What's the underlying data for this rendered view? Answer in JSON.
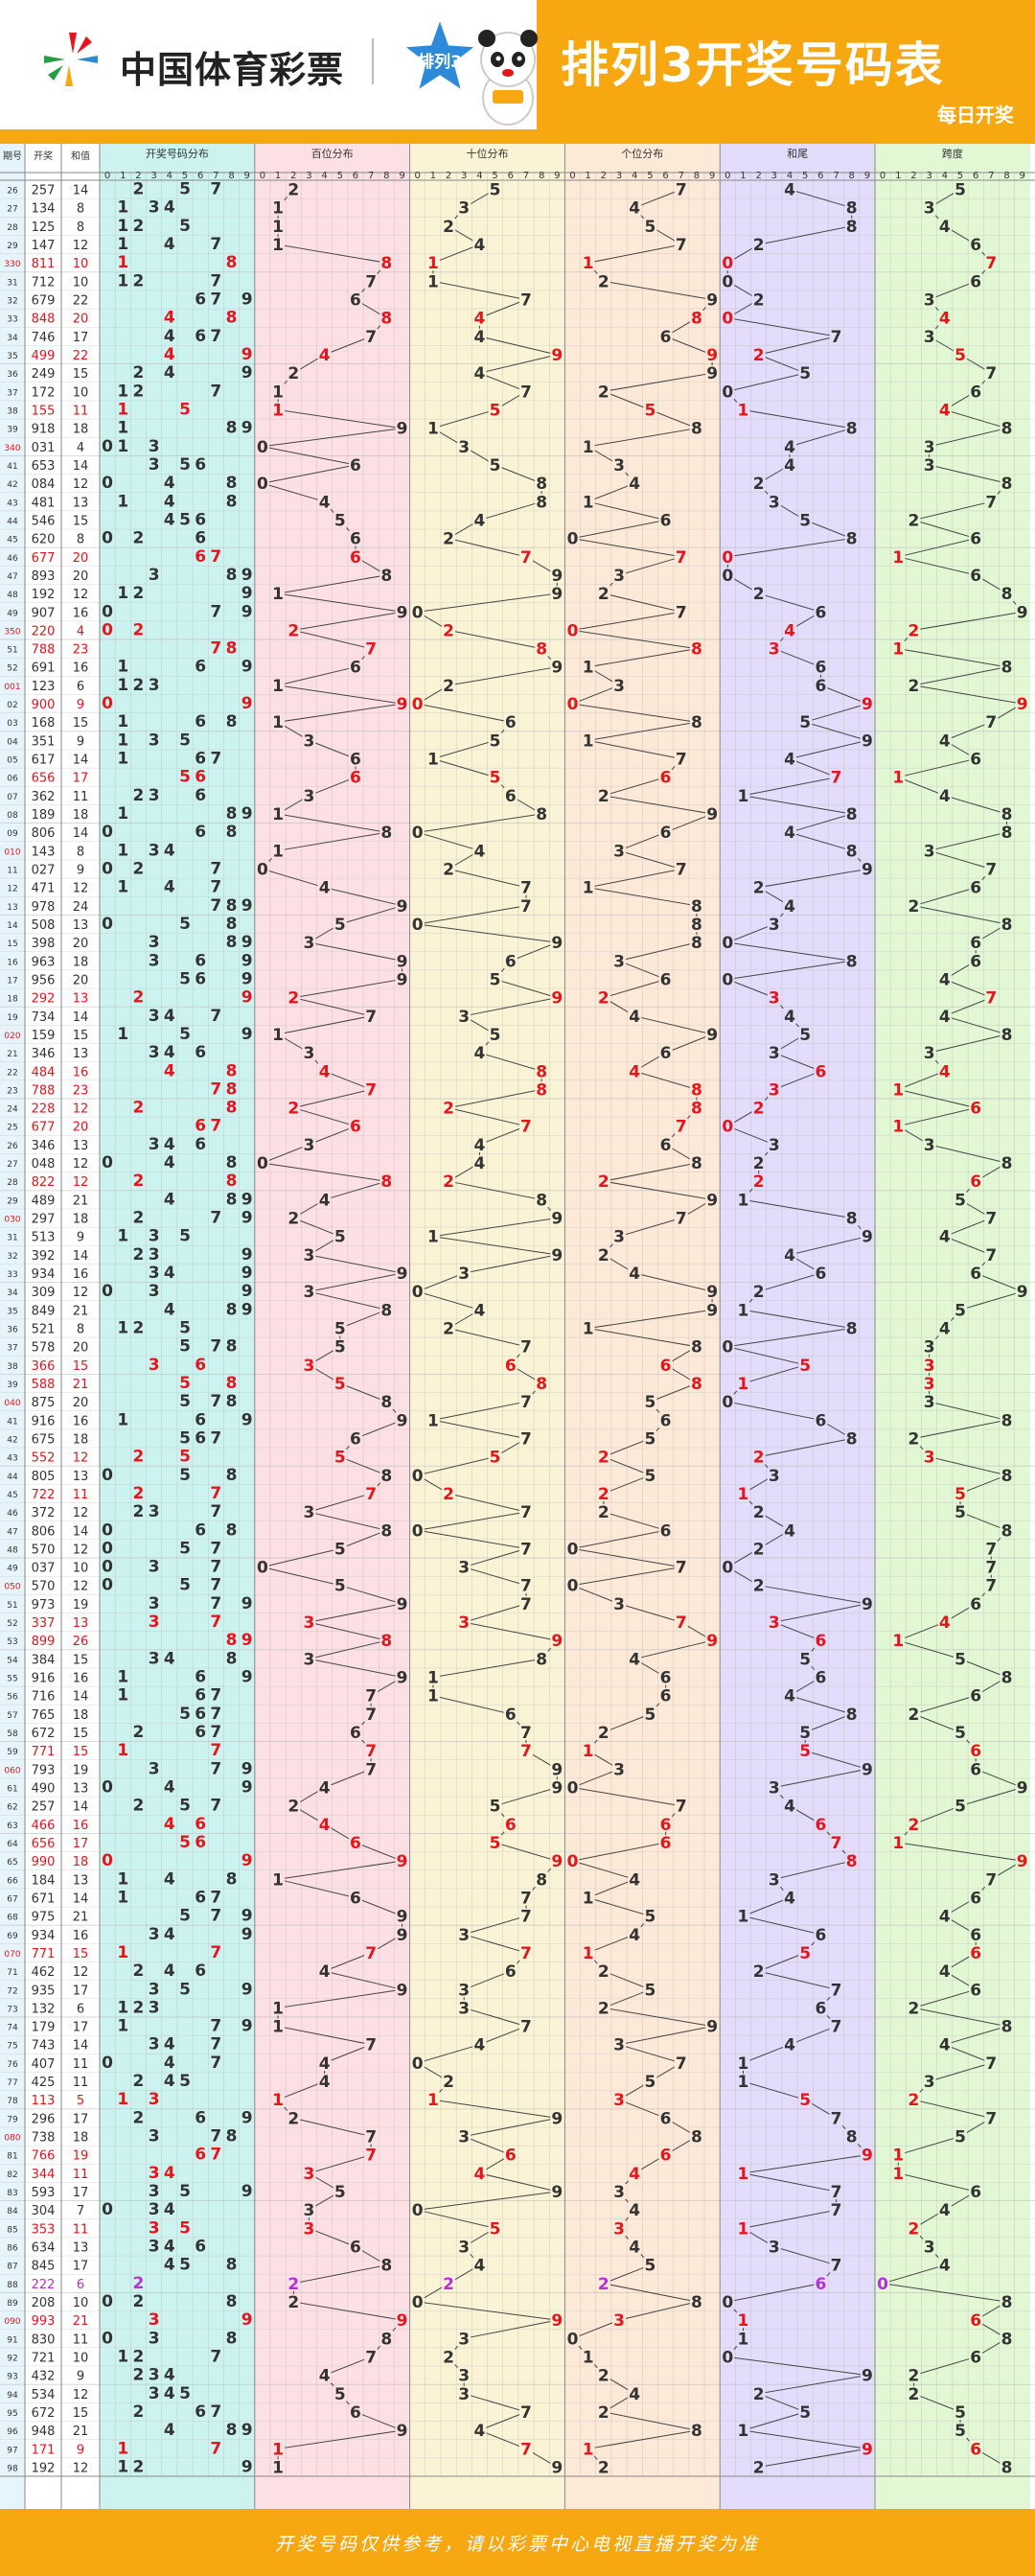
{
  "header": {
    "brand_name": "中国体育彩票",
    "badge_text": "排列3",
    "title": "排列3开奖号码表",
    "subtitle": "每日开奖"
  },
  "footer": {
    "disclaimer": "开奖号码仅供参考，请以彩票中心电视直播开奖为准"
  },
  "colors": {
    "brand_orange": "#f7a810",
    "hit_red": "#e8141c",
    "hit_purple": "#b530d8",
    "normal_text": "#333333",
    "grid_line": "#b8b8b8"
  },
  "chart_data": {
    "type": "table",
    "column_headers": {
      "issue": "期号",
      "number": "开奖",
      "sum": "和值",
      "number_distribution": "开奖号码分布",
      "hundreds": "百位分布",
      "tens": "十位分布",
      "units": "个位分布",
      "sum_tail": "和尾",
      "span": "跨度"
    },
    "digit_labels": [
      "0",
      "1",
      "2",
      "3",
      "4",
      "5",
      "6",
      "7",
      "8",
      "9"
    ],
    "issues": [
      "26",
      "27",
      "28",
      "29",
      "330",
      "31",
      "32",
      "33",
      "34",
      "35",
      "36",
      "37",
      "38",
      "39",
      "340",
      "41",
      "42",
      "43",
      "44",
      "45",
      "46",
      "47",
      "48",
      "49",
      "350",
      "51",
      "52",
      "001",
      "02",
      "03",
      "04",
      "05",
      "06",
      "07",
      "08",
      "09",
      "010",
      "11",
      "12",
      "13",
      "14",
      "15",
      "16",
      "17",
      "18",
      "19",
      "020",
      "21",
      "22",
      "23",
      "24",
      "25",
      "26",
      "27",
      "28",
      "29",
      "030",
      "31",
      "32",
      "33",
      "34",
      "35",
      "36",
      "37",
      "38",
      "39",
      "040",
      "41",
      "42",
      "43",
      "44",
      "45",
      "46",
      "47",
      "48",
      "49",
      "050",
      "51",
      "52",
      "53",
      "54",
      "55",
      "56",
      "57",
      "58",
      "59",
      "060",
      "61",
      "62",
      "63",
      "64",
      "65",
      "66",
      "67",
      "68",
      "69",
      "070",
      "71",
      "72",
      "73",
      "74",
      "75",
      "76",
      "77",
      "78",
      "79",
      "080",
      "81",
      "82",
      "83",
      "84",
      "85",
      "86",
      "87",
      "88",
      "89",
      "090",
      "91",
      "92",
      "93",
      "94",
      "95",
      "96",
      "97",
      "98"
    ],
    "numbers": [
      "257",
      "134",
      "125",
      "147",
      "811",
      "712",
      "679",
      "848",
      "746",
      "499",
      "249",
      "172",
      "155",
      "918",
      "031",
      "653",
      "084",
      "481",
      "546",
      "620",
      "677",
      "893",
      "192",
      "907",
      "220",
      "788",
      "691",
      "123",
      "900",
      "168",
      "351",
      "617",
      "656",
      "362",
      "189",
      "806",
      "143",
      "027",
      "471",
      "978",
      "508",
      "398",
      "963",
      "956",
      "292",
      "734",
      "159",
      "346",
      "484",
      "788",
      "228",
      "677",
      "346",
      "048",
      "822",
      "489",
      "297",
      "513",
      "392",
      "934",
      "309",
      "849",
      "521",
      "578",
      "366",
      "588",
      "875",
      "916",
      "675",
      "552",
      "805",
      "722",
      "372",
      "806",
      "570",
      "037",
      "570",
      "973",
      "337",
      "899",
      "384",
      "916",
      "716",
      "765",
      "672",
      "771",
      "793",
      "490",
      "257",
      "466",
      "656",
      "990",
      "184",
      "671",
      "975",
      "934",
      "771",
      "462",
      "935",
      "132",
      "179",
      "743",
      "407",
      "425",
      "113",
      "296",
      "738",
      "766",
      "344",
      "593",
      "304",
      "353",
      "634",
      "845",
      "222",
      "208",
      "993",
      "830",
      "721",
      "432",
      "534",
      "672",
      "948",
      "171",
      "192"
    ],
    "sums": [
      14,
      8,
      8,
      12,
      10,
      10,
      22,
      20,
      17,
      22,
      15,
      10,
      11,
      18,
      4,
      14,
      12,
      13,
      15,
      8,
      20,
      20,
      12,
      16,
      4,
      23,
      16,
      6,
      9,
      15,
      9,
      14,
      17,
      11,
      18,
      14,
      8,
      9,
      12,
      24,
      13,
      20,
      18,
      20,
      13,
      14,
      15,
      13,
      16,
      23,
      12,
      20,
      13,
      12,
      12,
      21,
      18,
      9,
      14,
      16,
      12,
      21,
      8,
      20,
      15,
      21,
      20,
      16,
      18,
      12,
      13,
      11,
      12,
      14,
      12,
      10,
      12,
      19,
      13,
      26,
      15,
      16,
      14,
      18,
      15,
      15,
      19,
      13,
      14,
      16,
      17,
      18,
      13,
      14,
      21,
      16,
      15,
      12,
      17,
      6,
      17,
      14,
      11,
      11,
      5,
      17,
      18,
      19,
      11,
      17,
      7,
      11,
      13,
      17,
      6,
      10,
      21,
      11,
      10,
      9,
      12,
      15,
      21,
      9,
      12
    ]
  }
}
